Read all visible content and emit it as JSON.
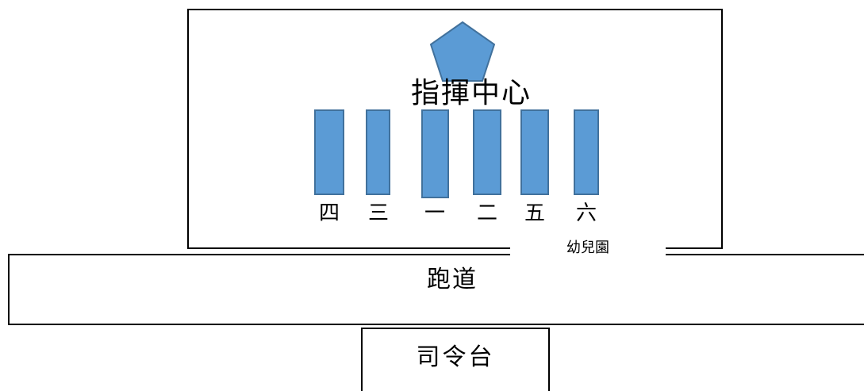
{
  "venue": {
    "command_center": "指揮中心",
    "kindergarten": "幼兒園",
    "track": "跑道",
    "podium": "司令台"
  },
  "class_blocks": [
    "四",
    "三",
    "一",
    "二",
    "五",
    "六"
  ],
  "colors": {
    "block_fill": "#5b9bd5",
    "block_border": "#41719c",
    "outline": "#000000"
  },
  "icons": {
    "command_center_marker": "pentagon-icon"
  }
}
